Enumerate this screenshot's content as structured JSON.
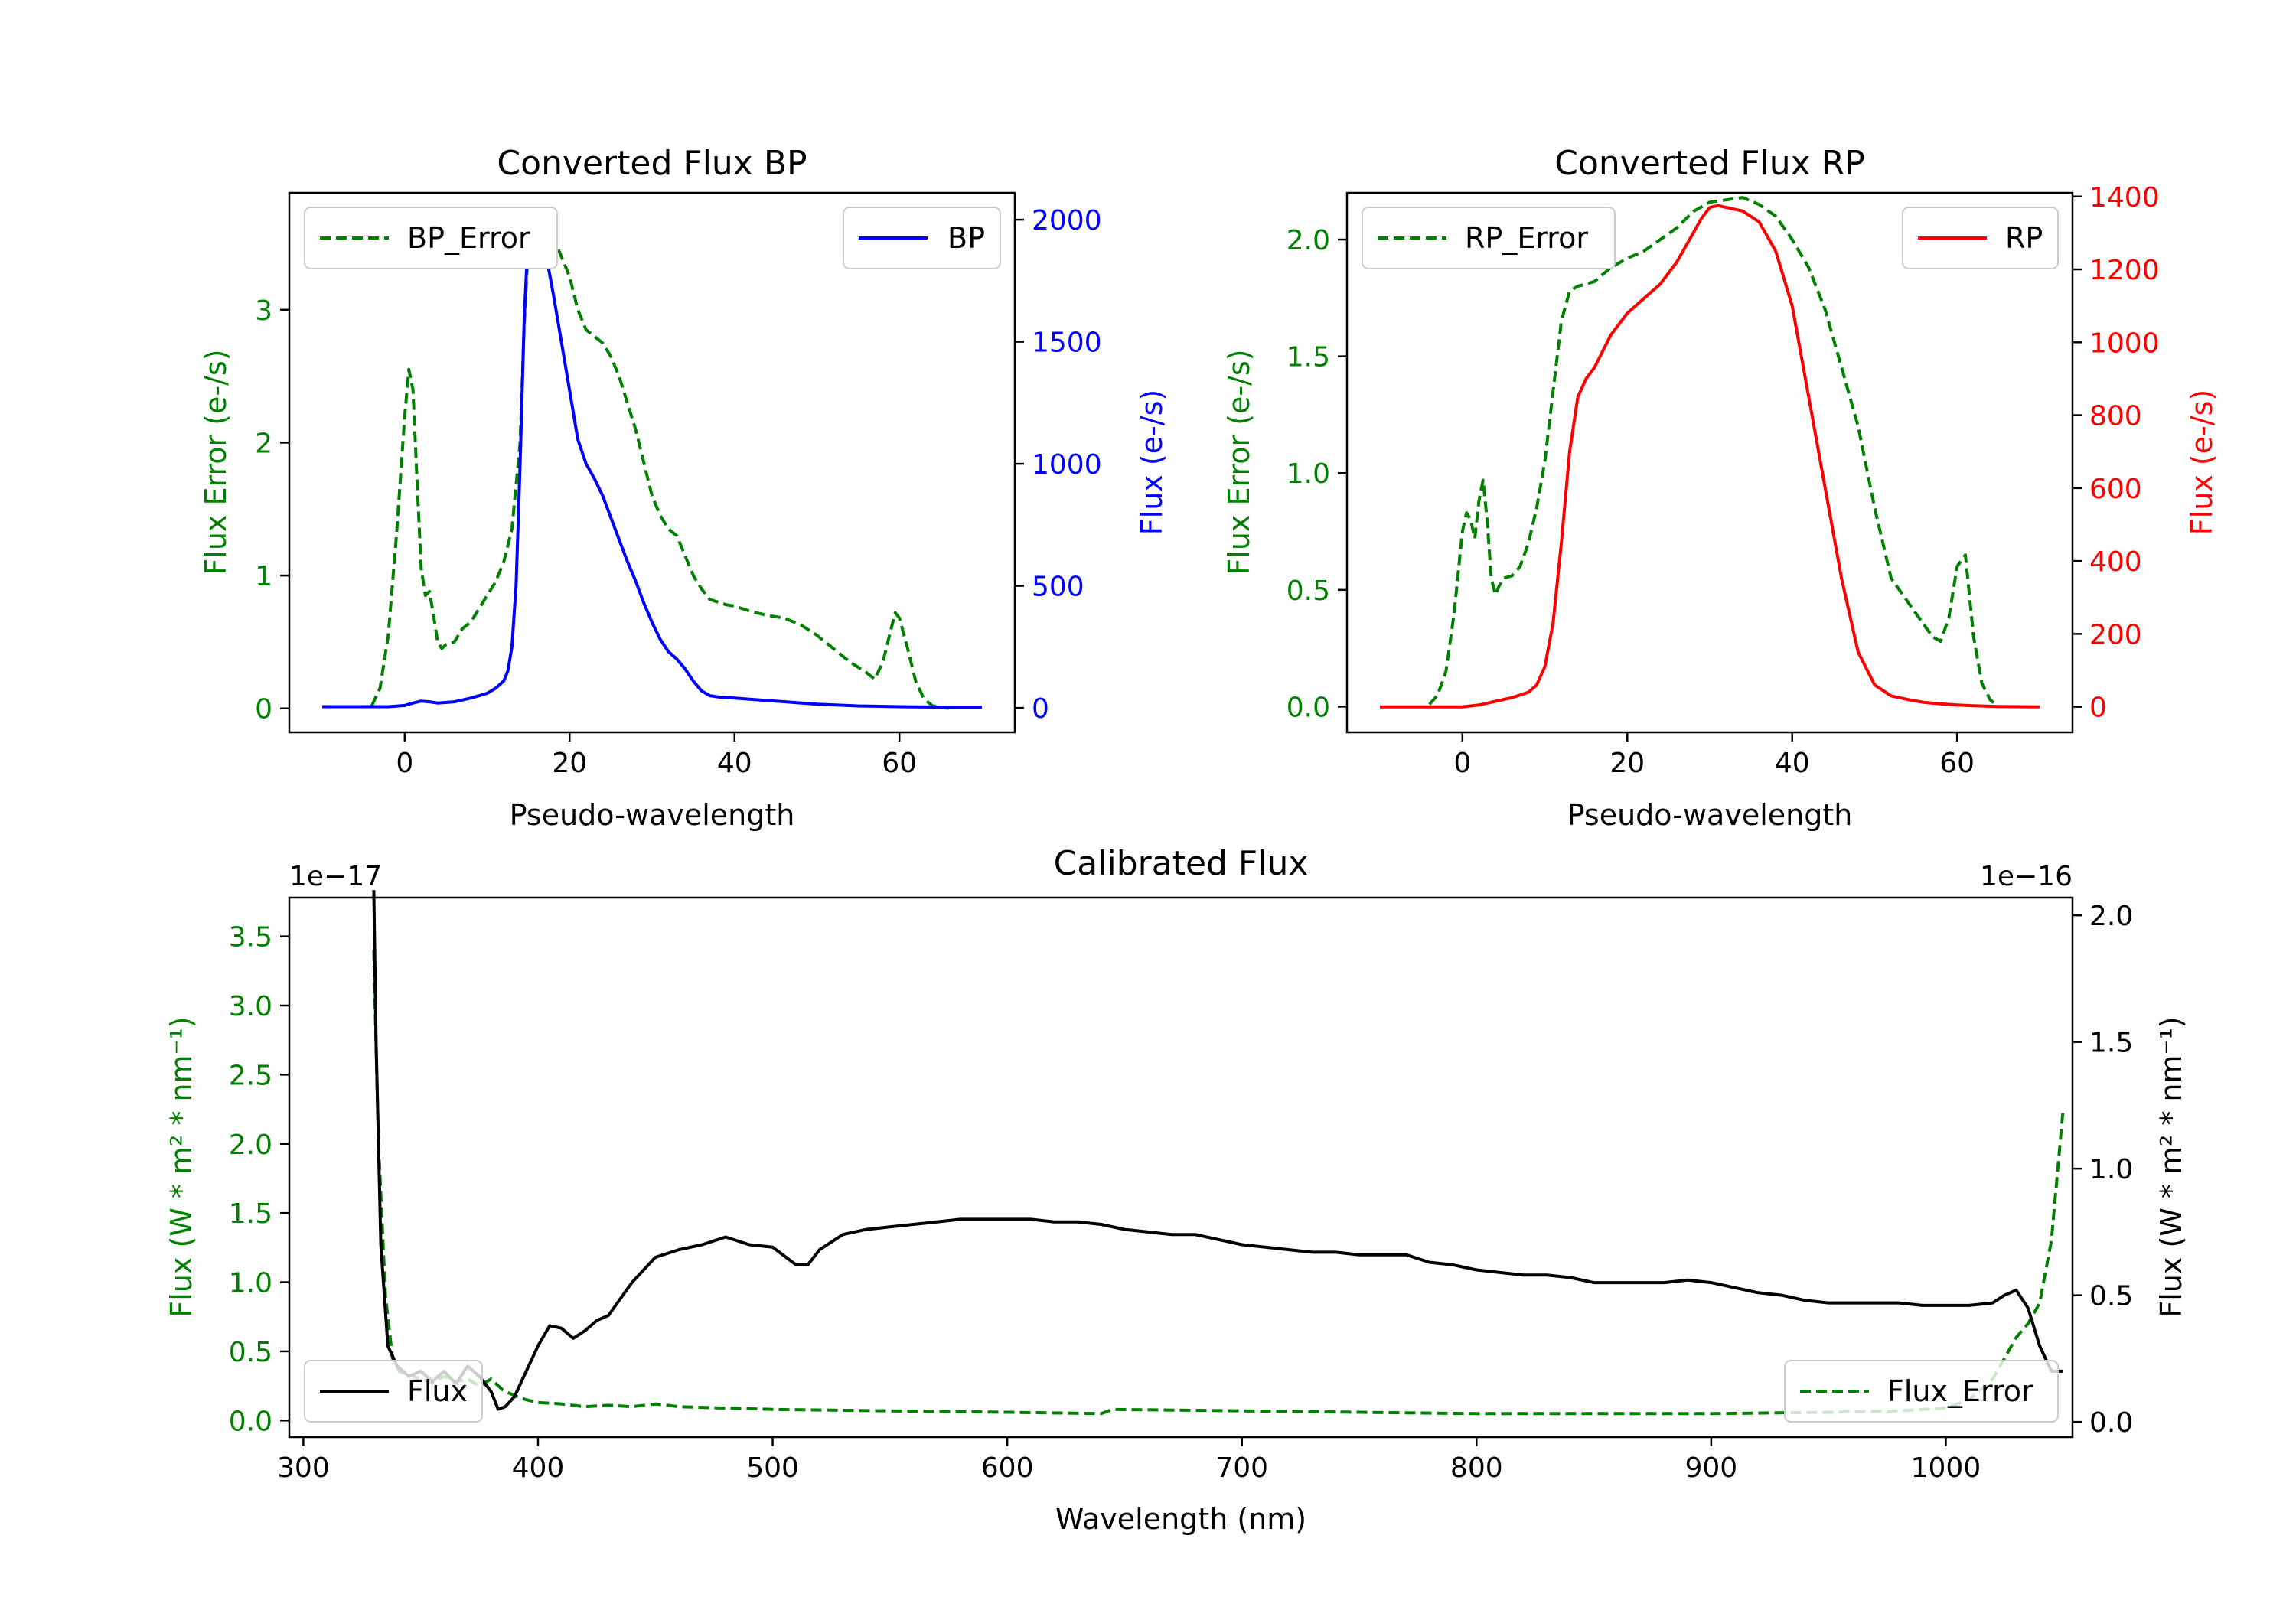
{
  "colors": {
    "green": "#008000",
    "blue": "#0000ff",
    "red": "#ff0000",
    "black": "#000000"
  },
  "chart_data": [
    {
      "id": "bp",
      "type": "line",
      "title": "Converted Flux BP",
      "xlabel": "Pseudo-wavelength",
      "ylabel_left": "Flux Error (e-/s)",
      "ylabel_right": "Flux (e-/s)",
      "xlim": [
        -14,
        74
      ],
      "xticks": [
        0,
        20,
        40,
        60
      ],
      "ylim_left": [
        -0.18,
        3.88
      ],
      "yticks_left": [
        0,
        1,
        2,
        3
      ],
      "ylim_right": [
        -100,
        2110
      ],
      "yticks_right": [
        0,
        500,
        1000,
        1500,
        2000
      ],
      "series": [
        {
          "name": "BP_Error",
          "axis": "left",
          "style": "dashed",
          "color": "#008000",
          "x": [
            -4,
            -3,
            -2,
            -1,
            0,
            0.5,
            1,
            1.5,
            2,
            2.5,
            3,
            3.5,
            4,
            4.5,
            5,
            6,
            7,
            8,
            9,
            10,
            11,
            12,
            13,
            14,
            14.5,
            15,
            16,
            17,
            18,
            19,
            20,
            21,
            22,
            23,
            24,
            25,
            26,
            27,
            28,
            29,
            30,
            31,
            32,
            33,
            34,
            35,
            36,
            37,
            38,
            39,
            40,
            42,
            44,
            46,
            48,
            50,
            52,
            54,
            56,
            57,
            58,
            59,
            59.5,
            60,
            61,
            62,
            63,
            64,
            65,
            66
          ],
          "y": [
            0.02,
            0.15,
            0.55,
            1.3,
            2.2,
            2.55,
            2.4,
            1.7,
            1.05,
            0.85,
            0.88,
            0.7,
            0.5,
            0.45,
            0.48,
            0.5,
            0.6,
            0.65,
            0.75,
            0.85,
            0.95,
            1.1,
            1.35,
            2.0,
            2.9,
            3.5,
            3.75,
            3.7,
            3.55,
            3.4,
            3.25,
            3.0,
            2.85,
            2.8,
            2.75,
            2.65,
            2.5,
            2.3,
            2.1,
            1.85,
            1.6,
            1.45,
            1.35,
            1.3,
            1.15,
            1.0,
            0.9,
            0.82,
            0.8,
            0.78,
            0.77,
            0.73,
            0.7,
            0.68,
            0.63,
            0.55,
            0.45,
            0.35,
            0.27,
            0.22,
            0.35,
            0.6,
            0.72,
            0.68,
            0.45,
            0.2,
            0.07,
            0.02,
            0.01,
            0.0
          ]
        },
        {
          "name": "BP",
          "axis": "right",
          "style": "solid",
          "color": "#0000ff",
          "x": [
            -10,
            -5,
            -2,
            0,
            1,
            2,
            3,
            4,
            6,
            8,
            10,
            11,
            12,
            12.5,
            13,
            13.5,
            14,
            14.5,
            15,
            15.5,
            16,
            17,
            18,
            19,
            20,
            21,
            22,
            23,
            24,
            25,
            26,
            27,
            28,
            29,
            30,
            31,
            32,
            33,
            34,
            35,
            36,
            37,
            38,
            40,
            42,
            45,
            50,
            55,
            60,
            65,
            70
          ],
          "y": [
            5,
            5,
            5,
            10,
            20,
            28,
            25,
            20,
            25,
            40,
            60,
            80,
            110,
            150,
            250,
            500,
            1000,
            1600,
            1950,
            2000,
            1980,
            1880,
            1700,
            1500,
            1300,
            1100,
            1000,
            940,
            870,
            780,
            690,
            600,
            520,
            430,
            350,
            280,
            230,
            200,
            160,
            110,
            70,
            50,
            45,
            40,
            35,
            28,
            15,
            8,
            5,
            3,
            3
          ]
        }
      ],
      "legend": [
        {
          "label": "BP_Error",
          "position": "upper left"
        },
        {
          "label": "BP",
          "position": "upper right"
        }
      ]
    },
    {
      "id": "rp",
      "type": "line",
      "title": "Converted Flux RP",
      "xlabel": "Pseudo-wavelength",
      "ylabel_left": "Flux Error (e-/s)",
      "ylabel_right": "Flux (e-/s)",
      "xlim": [
        -14,
        74
      ],
      "xticks": [
        0,
        20,
        40,
        60
      ],
      "ylim_left": [
        -0.11,
        2.2
      ],
      "yticks_left": [
        0.0,
        0.5,
        1.0,
        1.5,
        2.0
      ],
      "ylim_right": [
        -70,
        1410
      ],
      "yticks_right": [
        0,
        200,
        400,
        600,
        800,
        1000,
        1200,
        1400
      ],
      "series": [
        {
          "name": "RP_Error",
          "axis": "left",
          "style": "dashed",
          "color": "#008000",
          "x": [
            -4,
            -3,
            -2,
            -1,
            0,
            0.5,
            1,
            1.5,
            2,
            2.5,
            3,
            3.5,
            4,
            4.5,
            5,
            6,
            7,
            8,
            9,
            10,
            11,
            12,
            13,
            14,
            15,
            16,
            17,
            18,
            19,
            20,
            22,
            24,
            26,
            28,
            30,
            32,
            34,
            36,
            38,
            40,
            42,
            44,
            46,
            48,
            50,
            52,
            54,
            55,
            56,
            57,
            58,
            59,
            60,
            61,
            62,
            63,
            64,
            65
          ],
          "y": [
            0.01,
            0.05,
            0.15,
            0.4,
            0.75,
            0.83,
            0.8,
            0.72,
            0.88,
            0.97,
            0.8,
            0.55,
            0.48,
            0.52,
            0.55,
            0.56,
            0.6,
            0.7,
            0.85,
            1.05,
            1.35,
            1.65,
            1.78,
            1.8,
            1.81,
            1.82,
            1.85,
            1.88,
            1.9,
            1.92,
            1.95,
            2.0,
            2.05,
            2.12,
            2.16,
            2.17,
            2.18,
            2.15,
            2.1,
            2.0,
            1.88,
            1.7,
            1.45,
            1.2,
            0.85,
            0.55,
            0.45,
            0.4,
            0.35,
            0.3,
            0.28,
            0.38,
            0.6,
            0.65,
            0.3,
            0.1,
            0.03,
            0.0
          ]
        },
        {
          "name": "RP",
          "axis": "right",
          "style": "solid",
          "color": "#ff0000",
          "x": [
            -10,
            -5,
            0,
            2,
            4,
            6,
            8,
            9,
            10,
            11,
            12,
            13,
            14,
            15,
            16,
            18,
            20,
            22,
            24,
            26,
            28,
            29,
            30,
            31,
            32,
            34,
            36,
            38,
            40,
            42,
            44,
            46,
            48,
            50,
            52,
            54,
            56,
            58,
            60,
            62,
            65,
            70
          ],
          "y": [
            0,
            0,
            0,
            5,
            15,
            25,
            40,
            60,
            110,
            230,
            450,
            700,
            850,
            900,
            930,
            1020,
            1080,
            1120,
            1160,
            1220,
            1300,
            1340,
            1370,
            1375,
            1370,
            1360,
            1330,
            1250,
            1100,
            850,
            600,
            350,
            150,
            60,
            30,
            20,
            12,
            8,
            5,
            3,
            1,
            0
          ]
        }
      ],
      "legend": [
        {
          "label": "RP_Error",
          "position": "upper left"
        },
        {
          "label": "RP",
          "position": "upper right"
        }
      ]
    },
    {
      "id": "cal",
      "type": "line",
      "title": "Calibrated Flux",
      "xlabel": "Wavelength (nm)",
      "ylabel_left": "Flux (W * m² * nm⁻¹)",
      "ylabel_right": "Flux (W * m² * nm⁻¹)",
      "offset_left": "1e−17",
      "offset_right": "1e−16",
      "xlim": [
        294,
        1054
      ],
      "xticks": [
        300,
        400,
        500,
        600,
        700,
        800,
        900,
        1000
      ],
      "ylim_left": [
        -0.12,
        3.78
      ],
      "yticks_left": [
        0.0,
        0.5,
        1.0,
        1.5,
        2.0,
        2.5,
        3.0,
        3.5
      ],
      "ylim_right": [
        -0.06,
        2.07
      ],
      "yticks_right": [
        0.0,
        0.5,
        1.0,
        1.5,
        2.0
      ],
      "series": [
        {
          "name": "Flux_Error",
          "axis": "left",
          "style": "dashed",
          "color": "#008000",
          "x": [
            330,
            332,
            335,
            338,
            341,
            345,
            350,
            355,
            360,
            365,
            370,
            375,
            380,
            385,
            390,
            395,
            400,
            410,
            420,
            430,
            440,
            450,
            460,
            480,
            500,
            550,
            600,
            640,
            645,
            700,
            750,
            800,
            850,
            900,
            950,
            980,
            1000,
            1010,
            1020,
            1025,
            1030,
            1035,
            1040,
            1045,
            1050
          ],
          "y": [
            3.4,
            2.0,
            0.9,
            0.45,
            0.35,
            0.33,
            0.3,
            0.27,
            0.32,
            0.28,
            0.3,
            0.25,
            0.3,
            0.22,
            0.18,
            0.15,
            0.13,
            0.12,
            0.1,
            0.11,
            0.1,
            0.12,
            0.1,
            0.09,
            0.08,
            0.07,
            0.06,
            0.05,
            0.08,
            0.07,
            0.06,
            0.05,
            0.05,
            0.05,
            0.06,
            0.07,
            0.09,
            0.15,
            0.3,
            0.45,
            0.6,
            0.7,
            0.85,
            1.3,
            2.25
          ]
        },
        {
          "name": "Flux",
          "axis": "right",
          "style": "solid",
          "color": "#000000",
          "x": [
            330,
            331,
            333,
            336,
            340,
            345,
            350,
            355,
            360,
            365,
            370,
            375,
            380,
            383,
            386,
            390,
            395,
            400,
            405,
            410,
            415,
            420,
            425,
            430,
            440,
            450,
            460,
            470,
            480,
            490,
            500,
            510,
            515,
            520,
            530,
            540,
            550,
            560,
            570,
            580,
            590,
            600,
            610,
            620,
            630,
            640,
            650,
            660,
            670,
            680,
            690,
            700,
            710,
            720,
            730,
            740,
            750,
            760,
            770,
            780,
            790,
            800,
            810,
            820,
            830,
            840,
            850,
            860,
            870,
            880,
            890,
            900,
            910,
            920,
            930,
            940,
            950,
            960,
            970,
            980,
            990,
            1000,
            1010,
            1020,
            1025,
            1030,
            1035,
            1040,
            1045,
            1050
          ],
          "y": [
            2.1,
            1.5,
            0.7,
            0.3,
            0.22,
            0.18,
            0.2,
            0.16,
            0.2,
            0.15,
            0.22,
            0.18,
            0.12,
            0.05,
            0.06,
            0.1,
            0.2,
            0.3,
            0.38,
            0.37,
            0.33,
            0.36,
            0.4,
            0.42,
            0.55,
            0.65,
            0.68,
            0.7,
            0.73,
            0.7,
            0.69,
            0.62,
            0.62,
            0.68,
            0.74,
            0.76,
            0.77,
            0.78,
            0.79,
            0.8,
            0.8,
            0.8,
            0.8,
            0.79,
            0.79,
            0.78,
            0.76,
            0.75,
            0.74,
            0.74,
            0.72,
            0.7,
            0.69,
            0.68,
            0.67,
            0.67,
            0.66,
            0.66,
            0.66,
            0.63,
            0.62,
            0.6,
            0.59,
            0.58,
            0.58,
            0.57,
            0.55,
            0.55,
            0.55,
            0.55,
            0.56,
            0.55,
            0.53,
            0.51,
            0.5,
            0.48,
            0.47,
            0.47,
            0.47,
            0.47,
            0.46,
            0.46,
            0.46,
            0.47,
            0.5,
            0.52,
            0.45,
            0.3,
            0.2,
            0.2
          ]
        }
      ],
      "legend": [
        {
          "label": "Flux",
          "position": "lower left"
        },
        {
          "label": "Flux_Error",
          "position": "lower right"
        }
      ]
    }
  ]
}
